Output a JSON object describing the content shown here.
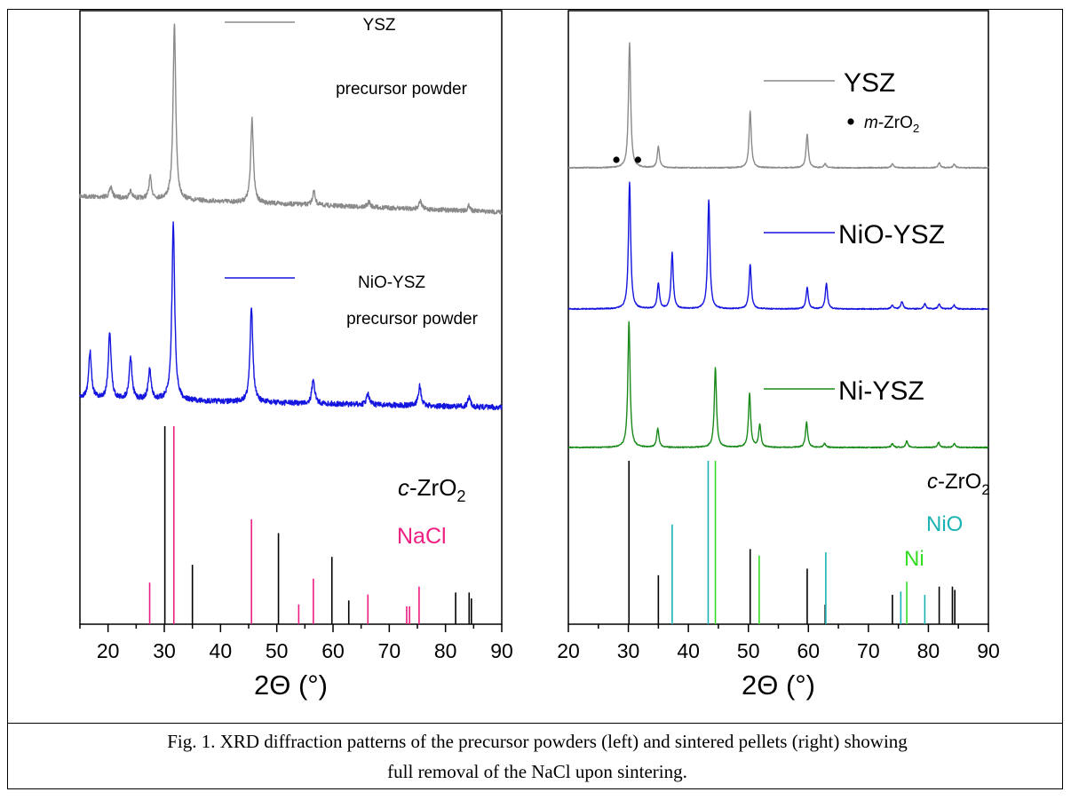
{
  "caption_lines": [
    "Fig. 1. XRD diffraction patterns of the precursor powders (left) and sintered pellets (right) showing",
    "full removal of the NaCl upon sintering."
  ],
  "chart_data": [
    {
      "type": "line",
      "panel": "left",
      "xlabel": "2Θ (°)",
      "xlim": [
        15,
        90
      ],
      "xticks": [
        20,
        30,
        40,
        50,
        60,
        70,
        80,
        90
      ],
      "legend_placement": "inside, next to each pattern",
      "series": [
        {
          "name": "YSZ",
          "name_line2": "precursor powder",
          "color": "#8a8a8a",
          "baseline": 0.0,
          "peaks": [
            [
              20.5,
              0.06
            ],
            [
              24,
              0.04
            ],
            [
              27.5,
              0.12
            ],
            [
              31.8,
              1.0
            ],
            [
              45.6,
              0.48
            ],
            [
              56.6,
              0.08
            ],
            [
              66.4,
              0.03
            ],
            [
              75.5,
              0.05
            ],
            [
              84.2,
              0.03
            ]
          ]
        },
        {
          "name": "NiO-YSZ",
          "name_line2": "precursor powder",
          "color": "#1515e0",
          "baseline": 0.0,
          "peaks": [
            [
              16.8,
              0.27
            ],
            [
              20.3,
              0.38
            ],
            [
              24,
              0.24
            ],
            [
              27.4,
              0.17
            ],
            [
              31.6,
              1.0
            ],
            [
              45.5,
              0.54
            ],
            [
              56.5,
              0.14
            ],
            [
              66.2,
              0.06
            ],
            [
              75.4,
              0.11
            ],
            [
              84.2,
              0.05
            ]
          ]
        }
      ],
      "references": [
        {
          "label_prefix": "c",
          "label_rest": "-ZrO",
          "label_sub": "2",
          "color": "#000000",
          "lines": [
            [
              30.1,
              1.0
            ],
            [
              35.0,
              0.3
            ],
            [
              50.3,
              0.46
            ],
            [
              59.8,
              0.34
            ],
            [
              62.8,
              0.12
            ],
            [
              74.0,
              0.0
            ],
            [
              81.8,
              0.16
            ],
            [
              84.2,
              0.16
            ],
            [
              84.6,
              0.13
            ]
          ]
        },
        {
          "label": "NaCl",
          "color": "#ee1e82",
          "lines": [
            [
              27.4,
              0.21
            ],
            [
              31.7,
              1.0
            ],
            [
              45.5,
              0.53
            ],
            [
              53.9,
              0.1
            ],
            [
              56.5,
              0.23
            ],
            [
              66.2,
              0.15
            ],
            [
              73.1,
              0.09
            ],
            [
              73.6,
              0.09
            ],
            [
              75.3,
              0.19
            ]
          ]
        }
      ]
    },
    {
      "type": "line",
      "panel": "right",
      "xlabel": "2Θ (°)",
      "xlim": [
        20,
        90
      ],
      "xticks": [
        20,
        30,
        40,
        50,
        60,
        70,
        80,
        90
      ],
      "legend_placement": "inside, next to each pattern",
      "series": [
        {
          "name": "YSZ",
          "color": "#8a8a8a",
          "peaks": [
            [
              30.2,
              1.0
            ],
            [
              35.0,
              0.17
            ],
            [
              50.3,
              0.45
            ],
            [
              59.8,
              0.27
            ],
            [
              62.8,
              0.03
            ],
            [
              74.0,
              0.03
            ],
            [
              81.8,
              0.04
            ],
            [
              84.3,
              0.03
            ]
          ],
          "markers": [
            28.0,
            31.6
          ],
          "marker_label_italic": "m",
          "marker_label_rest": "-ZrO",
          "marker_label_sub": "2"
        },
        {
          "name": "NiO-YSZ",
          "color": "#1515e0",
          "peaks": [
            [
              30.2,
              1.0
            ],
            [
              35.0,
              0.2
            ],
            [
              37.3,
              0.44
            ],
            [
              43.4,
              0.86
            ],
            [
              50.3,
              0.35
            ],
            [
              59.8,
              0.17
            ],
            [
              63.0,
              0.2
            ],
            [
              74.0,
              0.03
            ],
            [
              75.6,
              0.06
            ],
            [
              79.4,
              0.04
            ],
            [
              81.8,
              0.04
            ],
            [
              84.3,
              0.03
            ]
          ]
        },
        {
          "name": "Ni-YSZ",
          "color": "#1a8a1a",
          "peaks": [
            [
              30.1,
              1.0
            ],
            [
              34.9,
              0.15
            ],
            [
              44.5,
              0.63
            ],
            [
              50.2,
              0.43
            ],
            [
              51.9,
              0.18
            ],
            [
              59.7,
              0.2
            ],
            [
              62.7,
              0.03
            ],
            [
              74.0,
              0.03
            ],
            [
              76.4,
              0.05
            ],
            [
              81.7,
              0.04
            ],
            [
              84.3,
              0.03
            ]
          ]
        }
      ],
      "references": [
        {
          "label_prefix": "c",
          "label_rest": "-ZrO",
          "label_sub": "2",
          "color": "#000000",
          "lines": [
            [
              30.1,
              1.0
            ],
            [
              35.0,
              0.3
            ],
            [
              50.3,
              0.46
            ],
            [
              59.8,
              0.34
            ],
            [
              62.8,
              0.12
            ],
            [
              74.0,
              0.18
            ],
            [
              81.8,
              0.23
            ],
            [
              84.0,
              0.23
            ],
            [
              84.4,
              0.21
            ]
          ]
        },
        {
          "label": "NiO",
          "color": "#1ab3b3",
          "lines": [
            [
              37.3,
              0.61
            ],
            [
              43.3,
              1.0
            ],
            [
              62.9,
              0.44
            ],
            [
              75.4,
              0.2
            ],
            [
              79.4,
              0.18
            ]
          ]
        },
        {
          "label": "Ni",
          "color": "#33dd22",
          "lines": [
            [
              44.5,
              1.0
            ],
            [
              51.8,
              0.42
            ],
            [
              76.4,
              0.26
            ]
          ]
        }
      ]
    }
  ]
}
